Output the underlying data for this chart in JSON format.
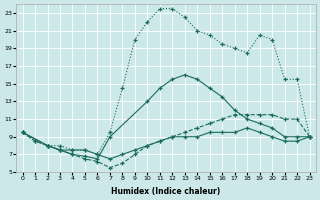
{
  "xlabel": "Humidex (Indice chaleur)",
  "bg_color": "#cce8e8",
  "grid_color": "#b8d8d8",
  "line_color": "#1a6b5a",
  "xlim": [
    -0.5,
    23.5
  ],
  "ylim": [
    5,
    24
  ],
  "xticks": [
    0,
    1,
    2,
    3,
    4,
    5,
    6,
    7,
    8,
    9,
    10,
    11,
    12,
    13,
    14,
    15,
    16,
    17,
    18,
    19,
    20,
    21,
    22,
    23
  ],
  "yticks": [
    5,
    7,
    9,
    11,
    13,
    15,
    17,
    19,
    21,
    23
  ],
  "curve_dotted_x": [
    0,
    1,
    2,
    3,
    4,
    5,
    6,
    7,
    8,
    9,
    10,
    11,
    12,
    13,
    14,
    15,
    16,
    17,
    18,
    19,
    20,
    21,
    22,
    23
  ],
  "curve_dotted_y": [
    9.5,
    8.5,
    8.0,
    8.0,
    7.5,
    7.5,
    7.0,
    9.5,
    14.5,
    20.0,
    22.0,
    23.5,
    23.5,
    22.5,
    21.0,
    20.5,
    19.5,
    19.0,
    18.5,
    20.5,
    20.0,
    15.5,
    15.5,
    9.0
  ],
  "curve_solid_x": [
    0,
    2,
    3,
    4,
    5,
    6,
    7,
    10,
    11,
    12,
    13,
    14,
    15,
    16,
    17,
    18,
    19,
    20,
    21,
    22,
    23
  ],
  "curve_solid_y": [
    9.5,
    8.0,
    7.5,
    7.0,
    6.8,
    6.5,
    9.0,
    13.0,
    14.5,
    15.5,
    16.0,
    15.5,
    14.5,
    13.5,
    12.0,
    11.0,
    10.5,
    10.0,
    9.0,
    9.0,
    9.0
  ],
  "curve_dashed_x": [
    0,
    1,
    2,
    3,
    4,
    5,
    6,
    7,
    8,
    9,
    10,
    11,
    12,
    13,
    14,
    15,
    16,
    17,
    18,
    19,
    20,
    21,
    22,
    23
  ],
  "curve_dashed_y": [
    9.5,
    8.5,
    8.0,
    7.5,
    7.0,
    6.5,
    6.2,
    5.5,
    6.0,
    7.0,
    8.0,
    8.5,
    9.0,
    9.5,
    10.0,
    10.5,
    11.0,
    11.5,
    11.5,
    11.5,
    11.5,
    11.0,
    11.0,
    9.0
  ],
  "curve_flat_x": [
    0,
    2,
    3,
    4,
    5,
    6,
    7,
    8,
    9,
    10,
    11,
    12,
    13,
    14,
    15,
    16,
    17,
    18,
    19,
    20,
    21,
    22,
    23
  ],
  "curve_flat_y": [
    9.5,
    8.0,
    7.5,
    7.5,
    7.5,
    7.0,
    6.5,
    7.0,
    7.5,
    8.0,
    8.5,
    9.0,
    9.0,
    9.0,
    9.5,
    9.5,
    9.5,
    10.0,
    9.5,
    9.0,
    8.5,
    8.5,
    9.0
  ]
}
